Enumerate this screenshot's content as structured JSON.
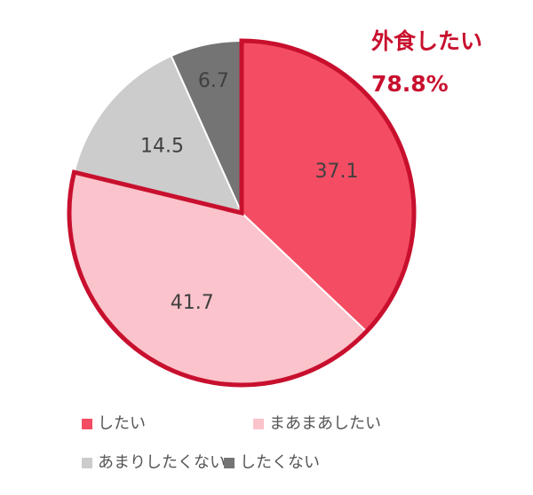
{
  "chart_data": {
    "type": "pie",
    "categories": [
      "したい",
      "まあまあしたい",
      "あまりしたくない",
      "したくない"
    ],
    "values": [
      37.1,
      41.7,
      14.5,
      6.7
    ],
    "colors": [
      "#f44d63",
      "#fbc3cb",
      "#cccccc",
      "#747474"
    ],
    "annotation": {
      "text": "外食したい",
      "value_label": "78.8%",
      "color": "#c8102e"
    }
  }
}
